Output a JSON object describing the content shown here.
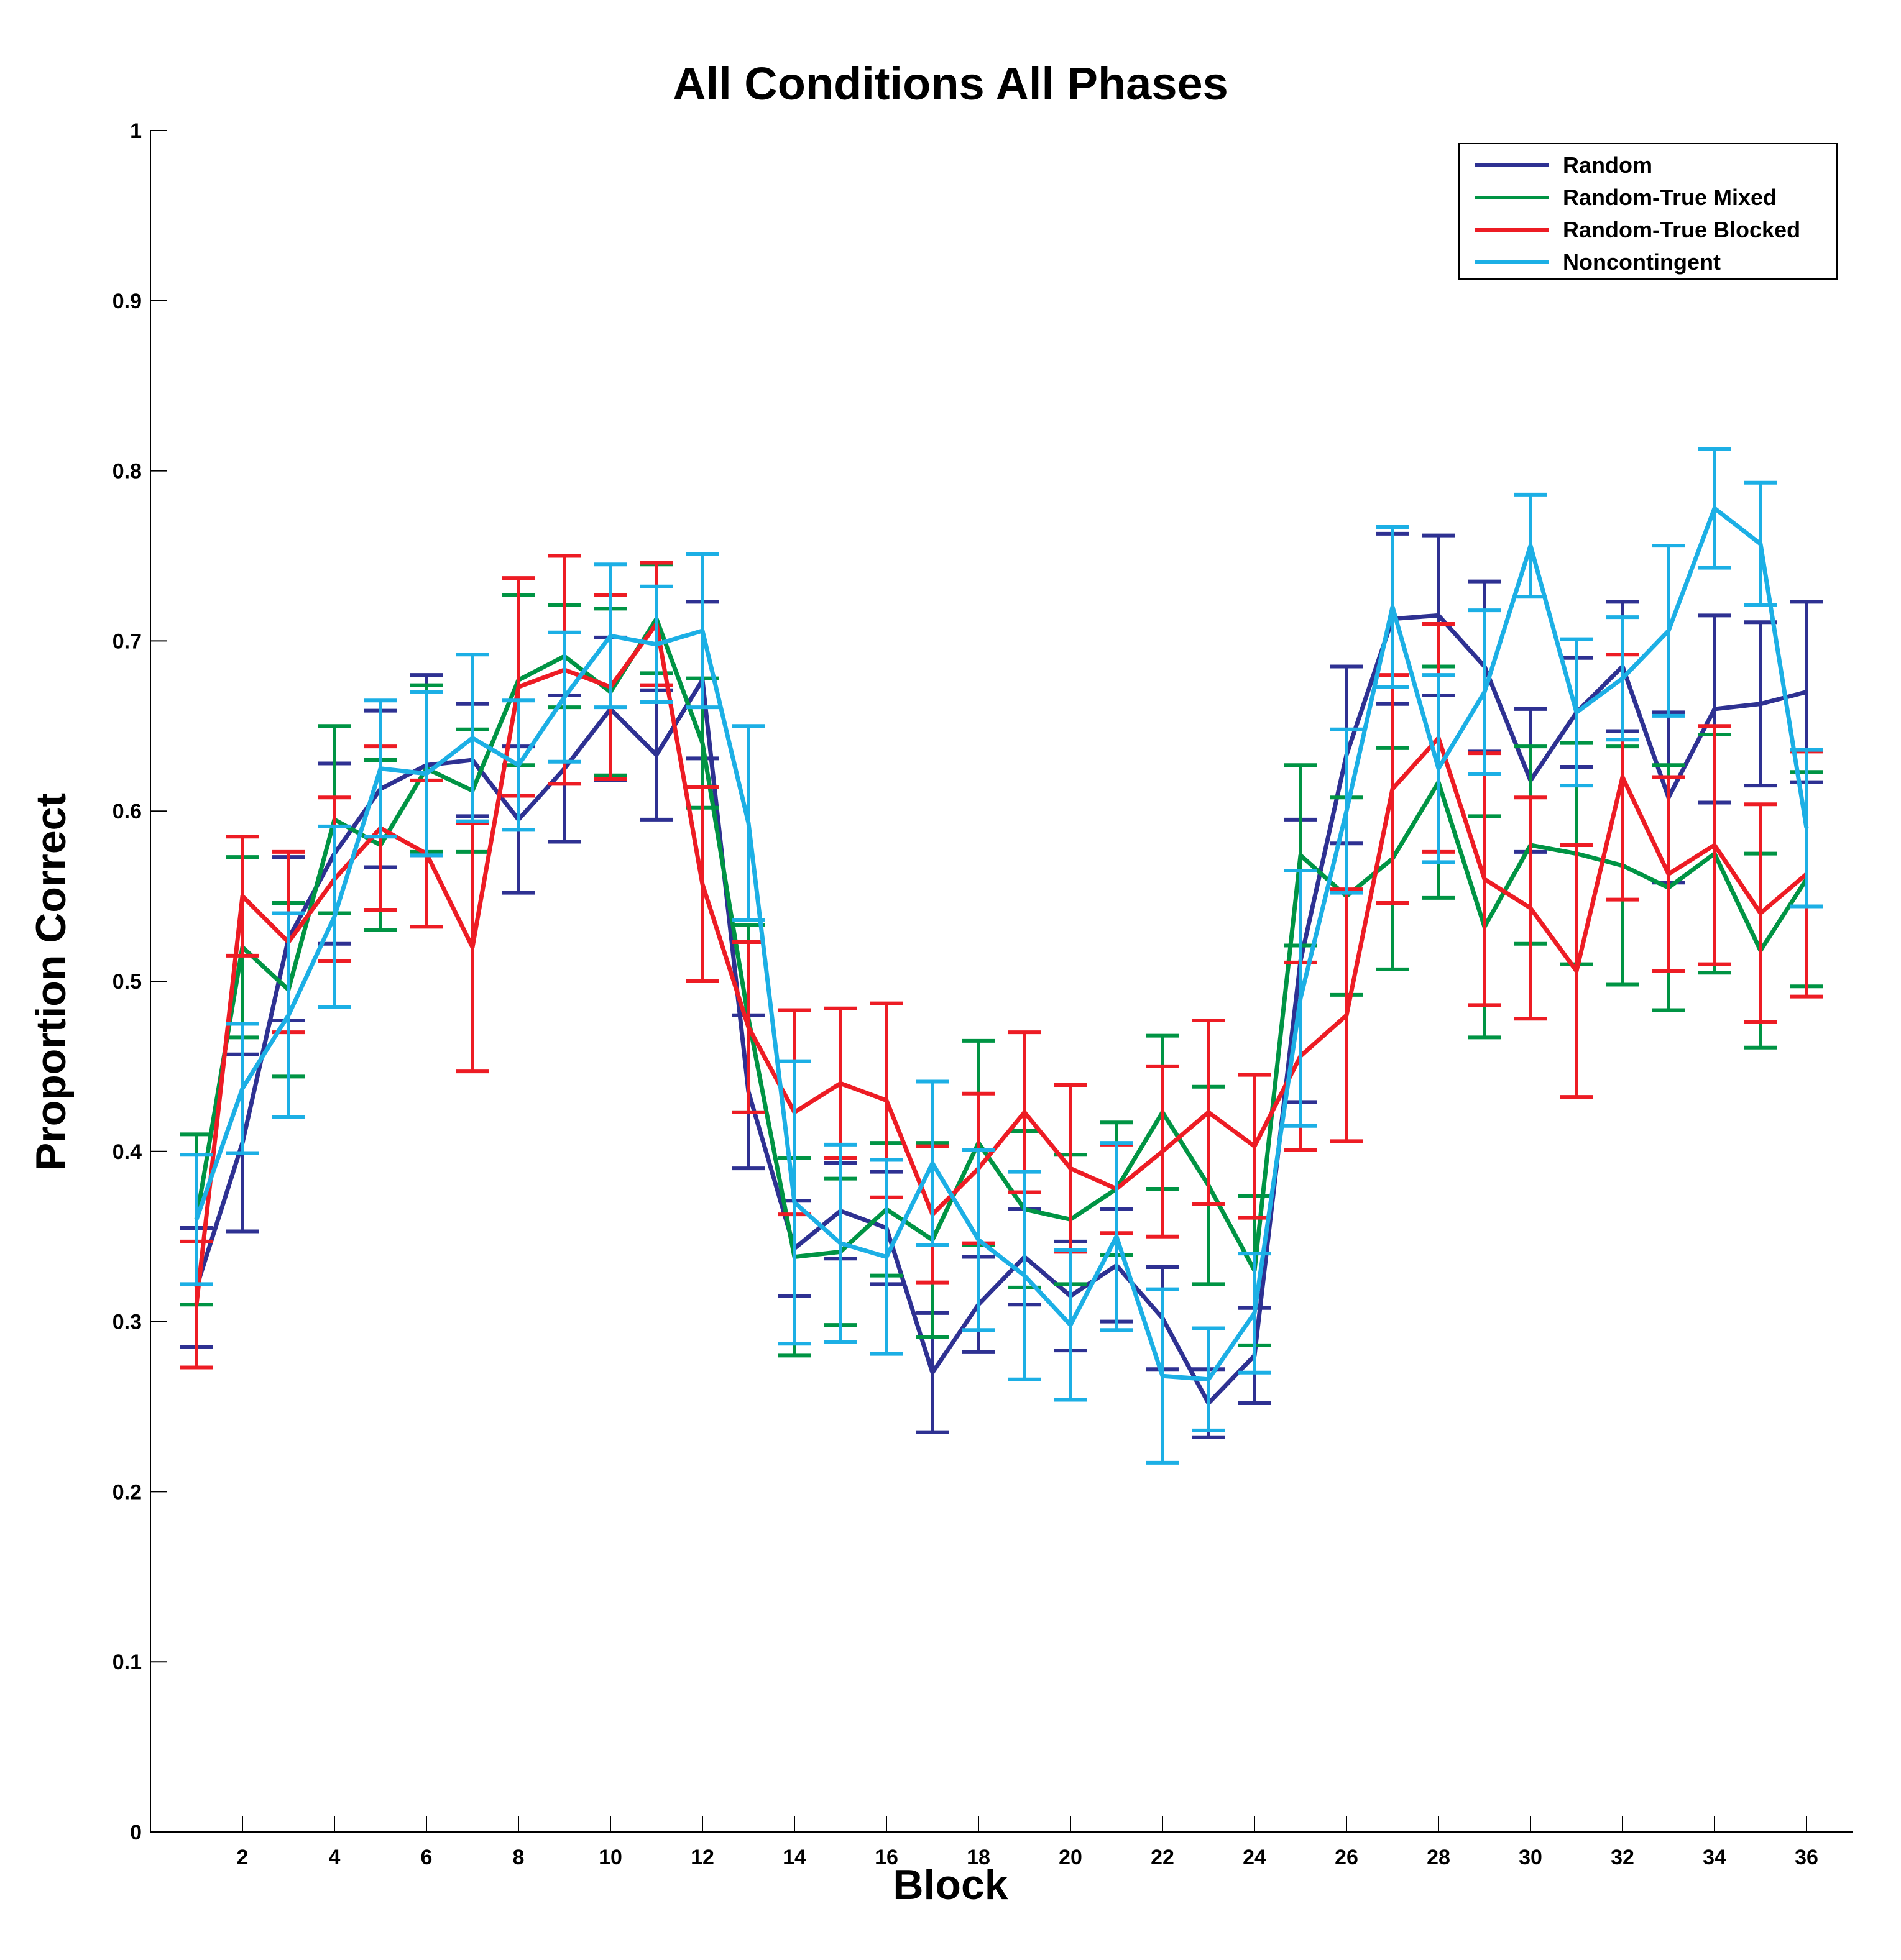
{
  "chart_data": {
    "type": "line",
    "title": "All Conditions All Phases",
    "xlabel": "Block",
    "ylabel": "Proportion Correct",
    "xlim": [
      0,
      37
    ],
    "ylim": [
      0,
      1
    ],
    "xticks": [
      2,
      4,
      6,
      8,
      10,
      12,
      14,
      16,
      18,
      20,
      22,
      24,
      26,
      28,
      30,
      32,
      34,
      36
    ],
    "yticks": [
      0,
      0.1,
      0.2,
      0.3,
      0.4,
      0.5,
      0.6,
      0.7,
      0.8,
      0.9,
      1
    ],
    "ytick_labels": [
      "0",
      "0.1",
      "0.2",
      "0.3",
      "0.4",
      "0.5",
      "0.6",
      "0.7",
      "0.8",
      "0.9",
      "1"
    ],
    "grid": false,
    "legend_position": "top-right",
    "error_bars": true,
    "x": [
      1,
      2,
      3,
      4,
      5,
      6,
      7,
      8,
      9,
      10,
      11,
      12,
      13,
      14,
      15,
      16,
      17,
      18,
      19,
      20,
      21,
      22,
      23,
      24,
      25,
      26,
      27,
      28,
      29,
      30,
      31,
      32,
      33,
      34,
      35,
      36
    ],
    "series": [
      {
        "name": "Random",
        "color": "#2e3192",
        "values": [
          0.32,
          0.405,
          0.525,
          0.575,
          0.613,
          0.627,
          0.63,
          0.595,
          0.625,
          0.66,
          0.633,
          0.677,
          0.435,
          0.343,
          0.365,
          0.355,
          0.27,
          0.31,
          0.338,
          0.315,
          0.333,
          0.302,
          0.252,
          0.28,
          0.512,
          0.633,
          0.713,
          0.715,
          0.685,
          0.618,
          0.658,
          0.685,
          0.608,
          0.66,
          0.663,
          0.67
        ],
        "errors": [
          0.035,
          0.052,
          0.048,
          0.053,
          0.046,
          0.053,
          0.033,
          0.043,
          0.043,
          0.042,
          0.038,
          0.046,
          0.045,
          0.028,
          0.028,
          0.033,
          0.035,
          0.028,
          0.028,
          0.032,
          0.033,
          0.03,
          0.02,
          0.028,
          0.083,
          0.052,
          0.05,
          0.047,
          0.05,
          0.042,
          0.032,
          0.038,
          0.05,
          0.055,
          0.048,
          0.053
        ]
      },
      {
        "name": "Random-True Mixed",
        "color": "#009444",
        "values": [
          0.36,
          0.52,
          0.495,
          0.595,
          0.58,
          0.625,
          0.612,
          0.677,
          0.691,
          0.67,
          0.713,
          0.64,
          0.478,
          0.338,
          0.341,
          0.366,
          0.348,
          0.405,
          0.366,
          0.36,
          0.378,
          0.423,
          0.38,
          0.33,
          0.574,
          0.55,
          0.572,
          0.617,
          0.532,
          0.58,
          0.575,
          0.568,
          0.555,
          0.575,
          0.518,
          0.56
        ],
        "errors": [
          0.05,
          0.053,
          0.051,
          0.055,
          0.05,
          0.049,
          0.036,
          0.05,
          0.03,
          0.049,
          0.032,
          0.038,
          0.055,
          0.058,
          0.043,
          0.039,
          0.057,
          0.06,
          0.046,
          0.038,
          0.039,
          0.045,
          0.058,
          0.044,
          0.053,
          0.058,
          0.065,
          0.068,
          0.065,
          0.058,
          0.065,
          0.07,
          0.072,
          0.07,
          0.057,
          0.063
        ]
      },
      {
        "name": "Random-True Blocked",
        "color": "#ed1c24",
        "values": [
          0.31,
          0.55,
          0.523,
          0.56,
          0.59,
          0.575,
          0.52,
          0.673,
          0.683,
          0.673,
          0.71,
          0.557,
          0.473,
          0.423,
          0.44,
          0.43,
          0.363,
          0.39,
          0.423,
          0.39,
          0.378,
          0.4,
          0.423,
          0.403,
          0.456,
          0.48,
          0.613,
          0.643,
          0.56,
          0.543,
          0.506,
          0.62,
          0.563,
          0.58,
          0.54,
          0.563
        ],
        "errors": [
          0.037,
          0.035,
          0.053,
          0.048,
          0.048,
          0.043,
          0.073,
          0.064,
          0.067,
          0.054,
          0.036,
          0.057,
          0.05,
          0.06,
          0.044,
          0.057,
          0.04,
          0.044,
          0.047,
          0.049,
          0.026,
          0.05,
          0.054,
          0.042,
          0.055,
          0.074,
          0.067,
          0.067,
          0.074,
          0.065,
          0.074,
          0.072,
          0.057,
          0.07,
          0.064,
          0.072
        ]
      },
      {
        "name": "Noncontingent",
        "color": "#1cafe5",
        "values": [
          0.36,
          0.437,
          0.48,
          0.538,
          0.625,
          0.622,
          0.643,
          0.627,
          0.667,
          0.703,
          0.698,
          0.706,
          0.593,
          0.37,
          0.346,
          0.338,
          0.393,
          0.348,
          0.327,
          0.298,
          0.35,
          0.268,
          0.266,
          0.305,
          0.49,
          0.6,
          0.72,
          0.625,
          0.67,
          0.756,
          0.658,
          0.678,
          0.706,
          0.778,
          0.757,
          0.59
        ],
        "errors": [
          0.038,
          0.038,
          0.06,
          0.053,
          0.04,
          0.048,
          0.049,
          0.038,
          0.038,
          0.042,
          0.034,
          0.045,
          0.057,
          0.083,
          0.058,
          0.057,
          0.048,
          0.053,
          0.061,
          0.044,
          0.055,
          0.051,
          0.03,
          0.035,
          0.075,
          0.048,
          0.047,
          0.055,
          0.048,
          0.03,
          0.043,
          0.036,
          0.05,
          0.035,
          0.036,
          0.046
        ]
      }
    ]
  }
}
